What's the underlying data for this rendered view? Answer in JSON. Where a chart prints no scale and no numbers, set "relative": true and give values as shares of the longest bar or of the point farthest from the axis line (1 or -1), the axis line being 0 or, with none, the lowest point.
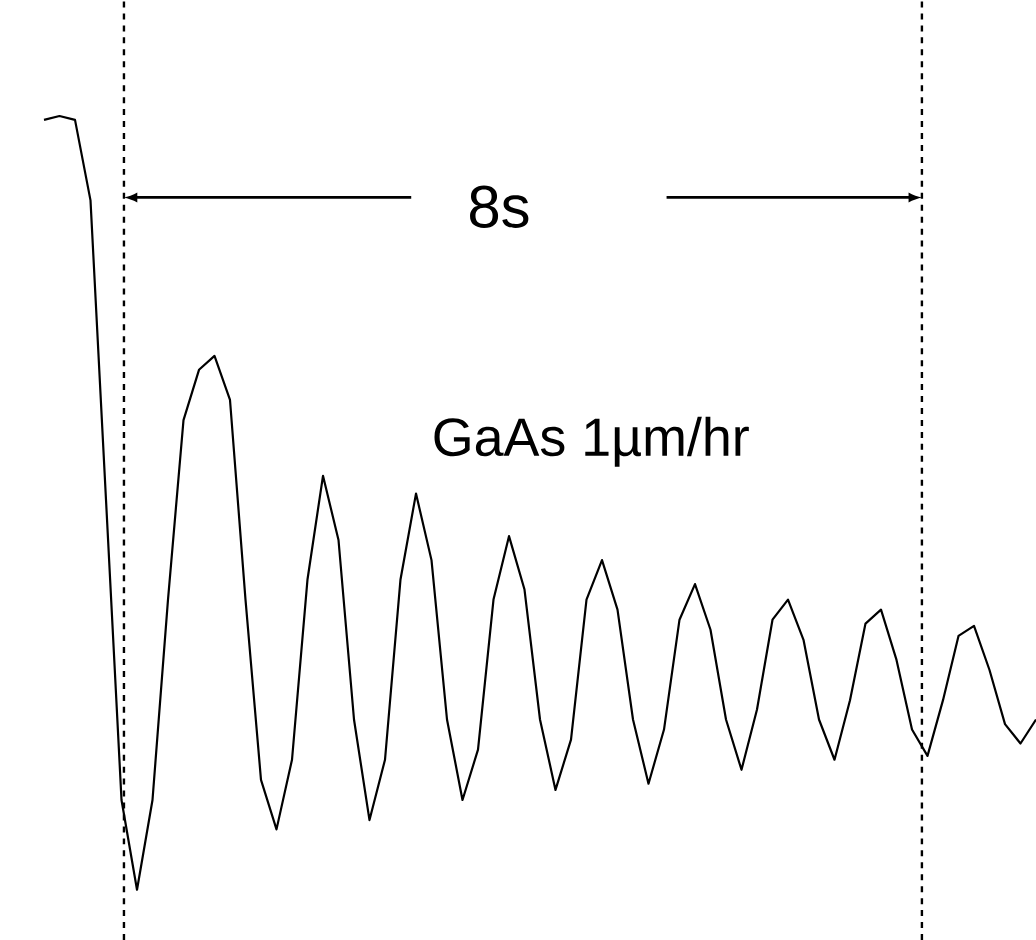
{
  "chart_data": {
    "type": "line",
    "relative": true,
    "line_style": "solid",
    "marker": "none",
    "categories": [
      null,
      null,
      null,
      null,
      null,
      null,
      null,
      null,
      null,
      null,
      null,
      null,
      null,
      null,
      null,
      null,
      null,
      null,
      null,
      null,
      null,
      null,
      null,
      null,
      null,
      null,
      null,
      null,
      null,
      null,
      null,
      null,
      null,
      null,
      null,
      null,
      null,
      null,
      null,
      null,
      null,
      null,
      null,
      null,
      null,
      null,
      null,
      null,
      null,
      null,
      null,
      null,
      null,
      null,
      null,
      null,
      null,
      null,
      null,
      null,
      null,
      null,
      null,
      null,
      null
    ],
    "series": [
      {
        "color": "#000000",
        "values": [
          0.995,
          1.0,
          0.995,
          0.891,
          0.504,
          0.116,
          0,
          0.116,
          0.375,
          0.607,
          0.672,
          0.69,
          0.633,
          0.375,
          0.142,
          0.078,
          0.168,
          0.401,
          0.535,
          0.452,
          0.22,
          0.09,
          0.168,
          0.401,
          0.512,
          0.426,
          0.22,
          0.116,
          0.181,
          0.375,
          0.457,
          0.388,
          0.22,
          0.129,
          0.194,
          0.375,
          0.426,
          0.362,
          0.22,
          0.137,
          0.207,
          0.349,
          0.395,
          0.336,
          0.22,
          0.155,
          0.233,
          0.349,
          0.375,
          0.323,
          0.22,
          0.168,
          0.245,
          0.344,
          0.362,
          0.297,
          0.207,
          0.173,
          0.245,
          0.328,
          0.341,
          0.284,
          0.214,
          0.189,
          0.22
        ]
      }
    ],
    "annotations": [
      "8s",
      "GaAs 1µm/hr"
    ]
  }
}
